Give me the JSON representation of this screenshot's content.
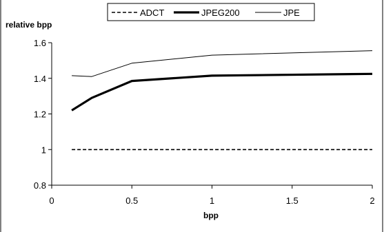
{
  "chart_data": {
    "type": "line",
    "xlabel": "bpp",
    "ylabel": "relative bpp",
    "xlim": [
      0,
      2
    ],
    "ylim": [
      0.8,
      1.6
    ],
    "x_ticks": [
      "0",
      "0.5",
      "1",
      "1.5",
      "2"
    ],
    "y_ticks": [
      "0.8",
      "1",
      "1.2",
      "1.4",
      "1.6"
    ],
    "grid": false,
    "legend_position": "top",
    "series": [
      {
        "name": "ADCT",
        "style": "dashed",
        "color": "#000000",
        "points": [
          [
            0.125,
            1.0
          ],
          [
            0.25,
            1.0
          ],
          [
            0.5,
            1.0
          ],
          [
            1,
            1.0
          ],
          [
            2,
            1.0
          ]
        ]
      },
      {
        "name": "JPEG200",
        "style": "thick",
        "color": "#000000",
        "points": [
          [
            0.125,
            1.22
          ],
          [
            0.25,
            1.29
          ],
          [
            0.5,
            1.385
          ],
          [
            1,
            1.415
          ],
          [
            2,
            1.425
          ]
        ]
      },
      {
        "name": "JPE",
        "style": "thin",
        "color": "#000000",
        "points": [
          [
            0.125,
            1.415
          ],
          [
            0.25,
            1.41
          ],
          [
            0.5,
            1.485
          ],
          [
            1,
            1.53
          ],
          [
            2,
            1.555
          ]
        ]
      }
    ]
  }
}
